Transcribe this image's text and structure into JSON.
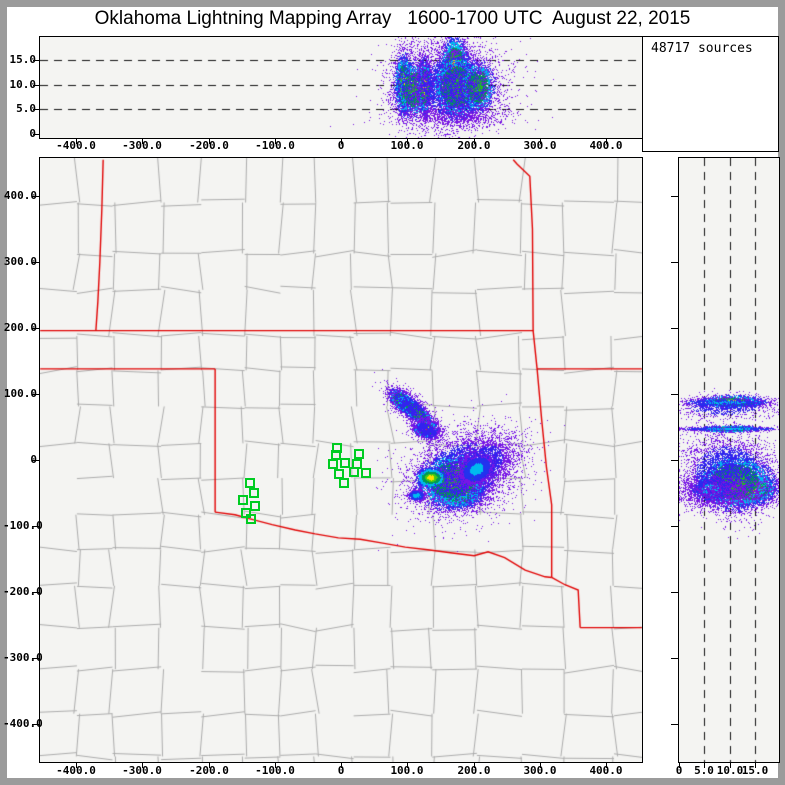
{
  "title": "Oklahoma Lightning Mapping Array   1600-1700 UTC  August 22, 2015",
  "sources_box": {
    "label": "48717 sources"
  },
  "colors": {
    "frame": "#9b9b9b",
    "window_bg": "#ffffff",
    "panel_bg": "#f4f4f2",
    "axis": "#000000",
    "grid_dash": "#111111",
    "county_line": "#ababab",
    "state_line": "#e10000",
    "station": "#00cc22",
    "palettes": {
      "hot": [
        [
          0.15,
          "#ee1133"
        ],
        [
          0.23,
          "#ff7711"
        ],
        [
          0.32,
          "#ffdd00"
        ],
        [
          0.48,
          "#22bb22"
        ],
        [
          0.6,
          "#009955"
        ],
        [
          0.75,
          "#00bbee"
        ],
        [
          0.9,
          "#2233ee"
        ],
        [
          9,
          "#7716e6"
        ]
      ],
      "warm": [
        [
          0.2,
          "#ffdd00"
        ],
        [
          0.34,
          "#44cc11"
        ],
        [
          0.52,
          "#009955"
        ],
        [
          0.7,
          "#00bbee"
        ],
        [
          0.88,
          "#2233ee"
        ],
        [
          9,
          "#7716e6"
        ]
      ],
      "green": [
        [
          0.25,
          "#22bb22"
        ],
        [
          0.5,
          "#009955"
        ],
        [
          0.68,
          "#00bbee"
        ],
        [
          0.85,
          "#2233ee"
        ],
        [
          9,
          "#7716e6"
        ]
      ],
      "cool": [
        [
          0.3,
          "#00bbee"
        ],
        [
          0.6,
          "#2233ee"
        ],
        [
          9,
          "#7716e6"
        ]
      ],
      "sparse": [
        [
          0.45,
          "#3322ee"
        ],
        [
          9,
          "#7716e6"
        ]
      ],
      "purple": [
        [
          9,
          "#7a14e0"
        ]
      ]
    }
  },
  "axes": {
    "ew": {
      "xlim": [
        -455,
        455
      ],
      "ylim": [
        0,
        20
      ],
      "x_tick_values": [
        -400,
        -300,
        -200,
        -100,
        0,
        100,
        200,
        300,
        400
      ],
      "x_tick_labels": [
        "-400.0",
        "-300.0",
        "-200.0",
        "-100.0",
        "0",
        "100.0",
        "200.0",
        "300.0",
        "400.0"
      ],
      "y_tick_values": [
        15,
        10,
        5,
        0
      ],
      "y_tick_labels": [
        "15.0",
        "10.0",
        "5.0",
        "0"
      ],
      "dashed_altitudes": [
        5,
        10,
        15
      ]
    },
    "plan": {
      "xlim": [
        -455,
        455
      ],
      "ylim": [
        -455,
        455
      ],
      "x_tick_values": [
        -400,
        -300,
        -200,
        -100,
        0,
        100,
        200,
        300,
        400
      ],
      "x_tick_labels": [
        "-400.0",
        "-300.0",
        "-200.0",
        "-100.0",
        "0",
        "100.0",
        "200.0",
        "300.0",
        "400.0"
      ],
      "y_tick_values": [
        400,
        300,
        200,
        100,
        0,
        -100,
        -200,
        -300,
        -400
      ],
      "y_tick_labels": [
        "400.0",
        "300.0",
        "200.0",
        "100.0",
        "0",
        "-100.0",
        "-200.0",
        "-300.0",
        "-400.0"
      ]
    },
    "ns": {
      "xlim": [
        0,
        20
      ],
      "ylim": [
        -455,
        455
      ],
      "x_tick_values": [
        0,
        5,
        10,
        15
      ],
      "x_tick_labels": [
        "0",
        "5.0",
        "10.0",
        "15.0"
      ],
      "y_tick_values": [
        400,
        300,
        200,
        100,
        0,
        -100,
        -200,
        -300,
        -400
      ],
      "dashed_altitudes": [
        5,
        10,
        15
      ]
    }
  },
  "map": {
    "stations_km": [
      [
        -6,
        18
      ],
      [
        -7.5,
        7.6
      ],
      [
        -12,
        -6
      ],
      [
        6,
        -4.5
      ],
      [
        -3,
        -21
      ],
      [
        19.6,
        -18
      ],
      [
        4.5,
        -35
      ],
      [
        27,
        9
      ],
      [
        24,
        -6
      ],
      [
        38,
        -20
      ],
      [
        -137,
        -35
      ],
      [
        -131,
        -50
      ],
      [
        -148,
        -61
      ],
      [
        -130,
        -70
      ],
      [
        -143,
        -80
      ],
      [
        -136,
        -89
      ]
    ],
    "state_borders_km": [
      [
        [
          -359,
          455
        ],
        [
          -361,
          380
        ],
        [
          -364,
          300
        ],
        [
          -367,
          240
        ],
        [
          -370,
          196
        ]
      ],
      [
        [
          -454,
          196
        ],
        [
          290,
          196
        ]
      ],
      [
        [
          -454,
          138
        ],
        [
          -190,
          138
        ]
      ],
      [
        [
          -190,
          138
        ],
        [
          -190,
          -79
        ]
      ],
      [
        [
          260,
          455
        ],
        [
          266,
          448
        ],
        [
          285,
          430
        ],
        [
          289,
          350
        ],
        [
          290,
          196
        ],
        [
          296,
          138
        ],
        [
          303,
          60
        ],
        [
          310,
          -10
        ],
        [
          318,
          -68
        ],
        [
          318,
          -178
        ]
      ],
      [
        [
          296,
          138
        ],
        [
          454,
          138
        ]
      ],
      [
        [
          -190,
          -79
        ],
        [
          -160,
          -83
        ],
        [
          -130,
          -91
        ],
        [
          -104,
          -98
        ],
        [
          -69,
          -106
        ],
        [
          -39,
          -112
        ],
        [
          -4,
          -118
        ],
        [
          29,
          -120
        ],
        [
          63,
          -126
        ],
        [
          97,
          -132
        ],
        [
          131,
          -136
        ],
        [
          168,
          -141
        ],
        [
          201,
          -145
        ],
        [
          222,
          -139
        ],
        [
          247,
          -148
        ],
        [
          278,
          -167
        ],
        [
          308,
          -177
        ],
        [
          318,
          -178
        ]
      ],
      [
        [
          318,
          -178
        ],
        [
          338,
          -189
        ],
        [
          358,
          -197
        ],
        [
          361,
          -254
        ]
      ],
      [
        [
          361,
          -254
        ],
        [
          454,
          -254
        ]
      ]
    ]
  },
  "chart_data": [
    {
      "type": "heatmap",
      "name": "altitude-vs-eastwest-km",
      "xlim": [
        -455,
        455
      ],
      "ylim": [
        0,
        20
      ],
      "grid": "dashed horizontal at 5,10,15 km",
      "clusters": [
        {
          "cx": 95,
          "cy": 10,
          "sx": 6,
          "sy": 2.6,
          "rot": 0,
          "n": 3200,
          "palette": "warm"
        },
        {
          "cx": 110,
          "cy": 9,
          "sx": 11,
          "sy": 2.4,
          "rot": 0,
          "n": 2400,
          "palette": "green"
        },
        {
          "cx": 100,
          "cy": 10,
          "sx": 14,
          "sy": 4,
          "rot": 0,
          "n": 900,
          "palette": "sparse"
        },
        {
          "cx": 127,
          "cy": 9.5,
          "sx": 4.5,
          "sy": 2.4,
          "rot": 0,
          "n": 2600,
          "palette": "warm"
        },
        {
          "cx": 127,
          "cy": 10,
          "sx": 7,
          "sy": 4,
          "rot": 0,
          "n": 700,
          "palette": "sparse"
        },
        {
          "cx": 172,
          "cy": 12.2,
          "sx": 9,
          "sy": 3,
          "rot": 0,
          "n": 8000,
          "palette": "hot"
        },
        {
          "cx": 176,
          "cy": 9.5,
          "sx": 17,
          "sy": 2.8,
          "rot": 0,
          "n": 7000,
          "palette": "green"
        },
        {
          "cx": 206,
          "cy": 9.6,
          "sx": 11,
          "sy": 2.2,
          "rot": 0,
          "n": 3000,
          "palette": "green"
        },
        {
          "cx": 170,
          "cy": 9.5,
          "sx": 34,
          "sy": 4.4,
          "rot": 0,
          "n": 3200,
          "palette": "sparse"
        },
        {
          "cx": 168,
          "cy": 11,
          "sx": 50,
          "sy": 5,
          "rot": 0,
          "n": 900,
          "palette": "purple"
        },
        {
          "cx": 172,
          "cy": 3.6,
          "sx": 46,
          "sy": 1.2,
          "rot": 0,
          "n": 700,
          "palette": "purple"
        }
      ]
    },
    {
      "type": "heatmap",
      "name": "plan-view-km",
      "xlim": [
        -455,
        455
      ],
      "ylim": [
        -455,
        455
      ],
      "cells": [
        {
          "name": "northwest-cell",
          "x_km": 95,
          "y_km": 88,
          "core_alt_km": 10
        },
        {
          "name": "small-middle-cell",
          "x_km": 128,
          "y_km": 47,
          "core_alt_km": 10
        },
        {
          "name": "main-cell",
          "x_km": 177,
          "y_km": -43,
          "core_alt_km": 13
        }
      ],
      "clusters": [
        {
          "cx": 94,
          "cy": 88,
          "sx": 10,
          "sy": 5,
          "rot": -40,
          "n": 3500,
          "palette": "hot"
        },
        {
          "cx": 113,
          "cy": 73,
          "sx": 17,
          "sy": 5,
          "rot": -40,
          "n": 2600,
          "palette": "green"
        },
        {
          "cx": 105,
          "cy": 80,
          "sx": 22,
          "sy": 9,
          "rot": -40,
          "n": 1200,
          "palette": "sparse"
        },
        {
          "cx": 128,
          "cy": 47,
          "sx": 7,
          "sy": 5,
          "rot": 0,
          "n": 3000,
          "palette": "hot"
        },
        {
          "cx": 129,
          "cy": 45,
          "sx": 12,
          "sy": 7,
          "rot": -30,
          "n": 900,
          "palette": "sparse"
        },
        {
          "cx": 177,
          "cy": -43,
          "sx": 16,
          "sy": 12,
          "rot": 0,
          "n": 12000,
          "palette": "hot"
        },
        {
          "cx": 170,
          "cy": -30,
          "sx": 24,
          "sy": 18,
          "rot": 15,
          "n": 6000,
          "palette": "green"
        },
        {
          "cx": 185,
          "cy": -18,
          "sx": 42,
          "sy": 30,
          "rot": 20,
          "n": 4500,
          "palette": "sparse"
        },
        {
          "cx": 136,
          "cy": -27,
          "sx": 9,
          "sy": 6,
          "rot": 0,
          "n": 2200,
          "palette": "warm"
        },
        {
          "cx": 114,
          "cy": -54,
          "sx": 6,
          "sy": 4,
          "rot": 0,
          "n": 800,
          "palette": "cool"
        },
        {
          "cx": 214,
          "cy": -6,
          "sx": 26,
          "sy": 16,
          "rot": 36,
          "n": 2800,
          "palette": "sparse"
        },
        {
          "cx": 205,
          "cy": -14,
          "sx": 12,
          "sy": 9,
          "rot": 32,
          "n": 2200,
          "palette": "cool"
        }
      ]
    },
    {
      "type": "heatmap",
      "name": "altitude-vs-northsouth-km",
      "xlim": [
        0,
        20
      ],
      "ylim": [
        -455,
        455
      ],
      "grid": "dashed vertical at 5,10,15 km",
      "clusters": [
        {
          "cx": 10.5,
          "cy": 88,
          "sx": 2.6,
          "sy": 4,
          "rot": 0,
          "n": 2800,
          "palette": "warm"
        },
        {
          "cx": 9.5,
          "cy": 87,
          "sx": 4.6,
          "sy": 3,
          "rot": 0,
          "n": 1100,
          "palette": "cool"
        },
        {
          "cx": 9,
          "cy": 80,
          "sx": 5,
          "sy": 9,
          "rot": 0,
          "n": 800,
          "palette": "sparse"
        },
        {
          "cx": 10,
          "cy": 47,
          "sx": 2.4,
          "sy": 2,
          "rot": 0,
          "n": 2200,
          "palette": "warm"
        },
        {
          "cx": 10,
          "cy": 47,
          "sx": 5,
          "sy": 1.4,
          "rot": 0,
          "n": 900,
          "palette": "cool"
        },
        {
          "cx": 13,
          "cy": -44,
          "sx": 2.6,
          "sy": 10,
          "rot": 0,
          "n": 9000,
          "palette": "hot"
        },
        {
          "cx": 11,
          "cy": -33,
          "sx": 3.2,
          "sy": 18,
          "rot": 0,
          "n": 7000,
          "palette": "green"
        },
        {
          "cx": 6.5,
          "cy": -45,
          "sx": 2.2,
          "sy": 10,
          "rot": 0,
          "n": 2200,
          "palette": "cool"
        },
        {
          "cx": 9.5,
          "cy": -20,
          "sx": 4.6,
          "sy": 30,
          "rot": 0,
          "n": 3600,
          "palette": "sparse"
        },
        {
          "cx": 10,
          "cy": -48,
          "sx": 6,
          "sy": 11,
          "rot": 0,
          "n": 1200,
          "palette": "purple"
        }
      ]
    }
  ]
}
